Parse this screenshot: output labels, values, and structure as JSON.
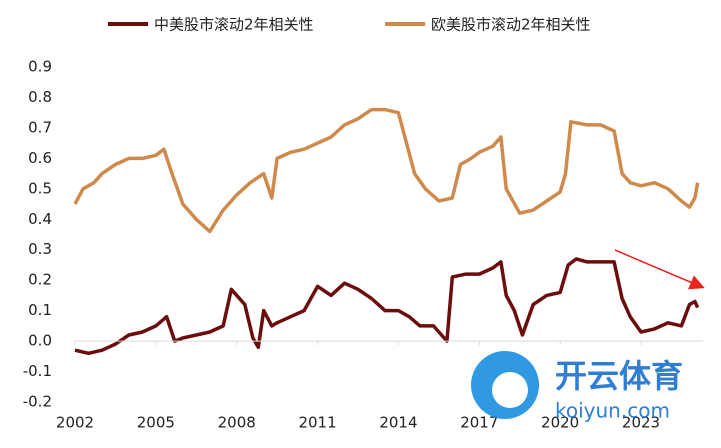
{
  "chart_data": {
    "type": "line",
    "xlim": [
      2002,
      2025.3
    ],
    "xticks": [
      2002,
      2005,
      2008,
      2011,
      2014,
      2017,
      2020,
      2023
    ],
    "ylim": [
      -0.2,
      0.9
    ],
    "yticks": [
      0.9,
      0.8,
      0.7,
      0.6,
      0.5,
      0.4,
      0.3,
      0.2,
      0.1,
      {
        "value": 0,
        "label": "0.0"
      },
      -0.1,
      -0.2
    ],
    "legend": "top",
    "series": [
      {
        "name": "中美股市滚动2年相关性",
        "color": "#6b0d0d",
        "x": [
          2002,
          2002.5,
          2003,
          2003.5,
          2004,
          2004.5,
          2005,
          2005.4,
          2005.7,
          2006,
          2006.5,
          2007,
          2007.5,
          2007.8,
          2008.3,
          2008.6,
          2008.8,
          2009,
          2009.3,
          2009.5,
          2010,
          2010.5,
          2011,
          2011.5,
          2012,
          2012.5,
          2013,
          2013.5,
          2014,
          2014.4,
          2014.8,
          2015.3,
          2015.8,
          2016,
          2016.5,
          2017,
          2017.5,
          2017.8,
          2018,
          2018.3,
          2018.6,
          2019,
          2019.5,
          2020,
          2020.3,
          2020.6,
          2021,
          2021.5,
          2022,
          2022.3,
          2022.6,
          2023,
          2023.5,
          2024,
          2024.5,
          2024.8,
          2025,
          2025.1
        ],
        "values": [
          -0.03,
          -0.04,
          -0.03,
          -0.01,
          0.02,
          0.03,
          0.05,
          0.08,
          0.0,
          0.01,
          0.02,
          0.03,
          0.05,
          0.17,
          0.12,
          0.01,
          -0.02,
          0.1,
          0.05,
          0.06,
          0.08,
          0.1,
          0.18,
          0.15,
          0.19,
          0.17,
          0.14,
          0.1,
          0.1,
          0.08,
          0.05,
          0.05,
          0.0,
          0.21,
          0.22,
          0.22,
          0.24,
          0.26,
          0.15,
          0.1,
          0.02,
          0.12,
          0.15,
          0.16,
          0.25,
          0.27,
          0.26,
          0.26,
          0.26,
          0.14,
          0.08,
          0.03,
          0.04,
          0.06,
          0.05,
          0.12,
          0.13,
          0.11
        ]
      },
      {
        "name": "欧美股市滚动2年相关性",
        "color": "#cf8a4b",
        "x": [
          2002,
          2002.3,
          2002.7,
          2003,
          2003.5,
          2004,
          2004.5,
          2005,
          2005.3,
          2005.6,
          2006,
          2006.5,
          2007,
          2007.5,
          2008,
          2008.5,
          2009,
          2009.3,
          2009.5,
          2010,
          2010.5,
          2011,
          2011.5,
          2012,
          2012.5,
          2013,
          2013.5,
          2014,
          2014.3,
          2014.6,
          2015,
          2015.5,
          2016,
          2016.3,
          2016.7,
          2017,
          2017.5,
          2017.8,
          2018,
          2018.5,
          2019,
          2019.5,
          2020,
          2020.2,
          2020.4,
          2021,
          2021.5,
          2022,
          2022.3,
          2022.6,
          2023,
          2023.5,
          2024,
          2024.5,
          2024.8,
          2025,
          2025.1
        ],
        "values": [
          0.45,
          0.5,
          0.52,
          0.55,
          0.58,
          0.6,
          0.6,
          0.61,
          0.63,
          0.55,
          0.45,
          0.4,
          0.36,
          0.43,
          0.48,
          0.52,
          0.55,
          0.47,
          0.6,
          0.62,
          0.63,
          0.65,
          0.67,
          0.71,
          0.73,
          0.76,
          0.76,
          0.75,
          0.65,
          0.55,
          0.5,
          0.46,
          0.47,
          0.58,
          0.6,
          0.62,
          0.64,
          0.67,
          0.5,
          0.42,
          0.43,
          0.46,
          0.49,
          0.55,
          0.72,
          0.71,
          0.71,
          0.69,
          0.55,
          0.52,
          0.51,
          0.52,
          0.5,
          0.46,
          0.44,
          0.47,
          0.52
        ]
      }
    ],
    "watermark": {
      "name": "开云体育",
      "url": "koiyun.com"
    }
  }
}
